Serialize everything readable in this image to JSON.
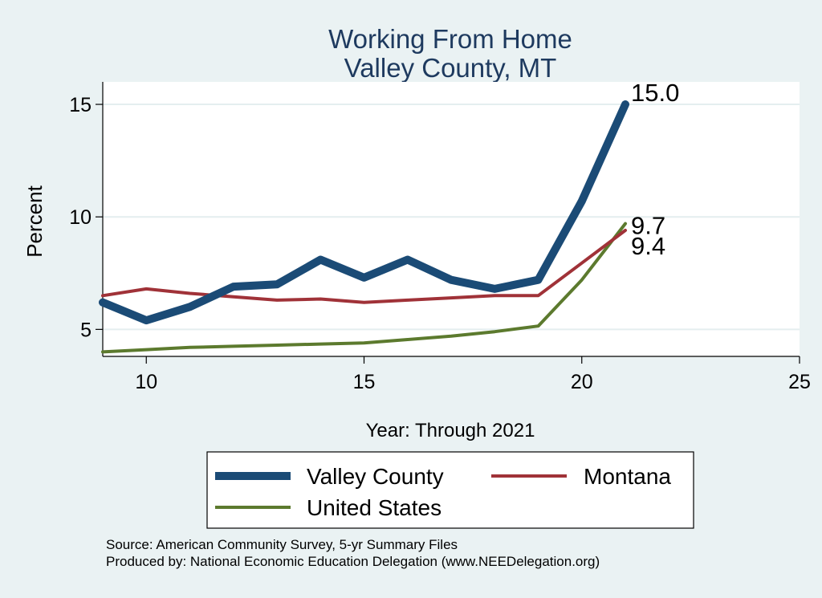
{
  "chart_data": {
    "type": "line",
    "title": "Working From Home",
    "subtitle": "Valley County, MT",
    "xlabel": "Year: Through 2021",
    "ylabel": "Percent",
    "xlim": [
      9,
      25
    ],
    "ylim": [
      3.8,
      16
    ],
    "xticks": [
      10,
      15,
      20,
      25
    ],
    "yticks": [
      5,
      10,
      15
    ],
    "grid": true,
    "legend_position": "bottom",
    "series": [
      {
        "name": "Valley County",
        "color": "#1b4b76",
        "x": [
          9,
          10,
          11,
          12,
          13,
          14,
          15,
          16,
          17,
          18,
          19,
          20,
          21
        ],
        "values": [
          6.2,
          5.4,
          6.0,
          6.9,
          7.0,
          8.1,
          7.3,
          8.1,
          7.2,
          6.8,
          7.2,
          10.7,
          15.0
        ],
        "end_label": "15.0"
      },
      {
        "name": "Montana",
        "color": "#a03238",
        "x": [
          9,
          10,
          11,
          12,
          13,
          14,
          15,
          16,
          17,
          18,
          19,
          20,
          21
        ],
        "values": [
          6.5,
          6.8,
          6.6,
          6.45,
          6.3,
          6.35,
          6.2,
          6.3,
          6.4,
          6.5,
          6.5,
          7.95,
          9.4
        ],
        "end_label": "9.4"
      },
      {
        "name": "United States",
        "color": "#5c7a2e",
        "x": [
          9,
          10,
          11,
          12,
          13,
          14,
          15,
          16,
          17,
          18,
          19,
          20,
          21
        ],
        "values": [
          4.0,
          4.1,
          4.2,
          4.25,
          4.3,
          4.35,
          4.4,
          4.55,
          4.7,
          4.9,
          5.15,
          7.2,
          9.7
        ],
        "end_label": "9.7"
      }
    ]
  },
  "notes": {
    "source": "Source: American Community Survey, 5-yr Summary Files",
    "produced": "Produced by: National Economic Education Delegation (www.NEEDelegation.org)"
  }
}
